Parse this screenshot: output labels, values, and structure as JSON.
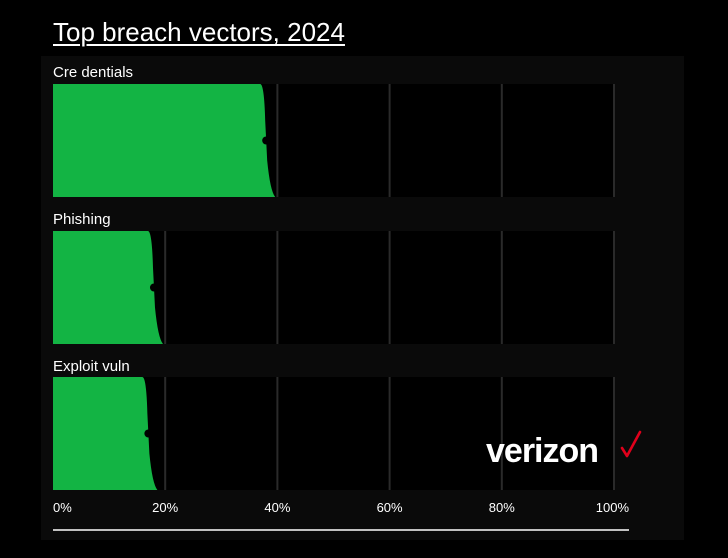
{
  "chart_data": {
    "type": "bar",
    "orientation": "horizontal",
    "title": "Top breach vectors, 2024",
    "categories": [
      "Cre dentials",
      "Phishing",
      "Exploit vuln"
    ],
    "values": [
      38,
      18,
      17
    ],
    "xlim": [
      0,
      100
    ],
    "xticks": [
      "0%",
      "20%",
      "40%",
      "60%",
      "80%",
      "100%"
    ],
    "grid": true,
    "colors": {
      "bar": "#13b444",
      "background": "#000000",
      "plot": "#000000",
      "marker": "#000000",
      "text": "#ffffff"
    }
  },
  "brand": {
    "text": "verizon"
  }
}
